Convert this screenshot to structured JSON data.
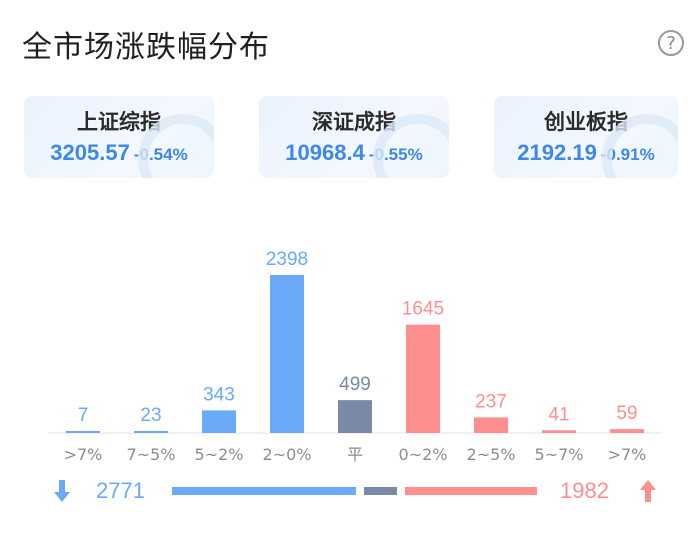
{
  "header": {
    "title": "全市场涨跌幅分布",
    "help_icon": "question-circle-icon",
    "help_glyph": "?"
  },
  "indices": [
    {
      "name": "上证综指",
      "value": "3205.57",
      "change": "-0.54%"
    },
    {
      "name": "深证成指",
      "value": "10968.4",
      "change": "-0.55%"
    },
    {
      "name": "创业板指",
      "value": "2192.19",
      "change": "-0.91%"
    }
  ],
  "colors": {
    "down": "#6aaaf8",
    "flat": "#7a8aa6",
    "up": "#ff8f8f",
    "index_text": "#3d88e8"
  },
  "chart_data": {
    "type": "bar",
    "categories": [
      ">7%",
      "7~5%",
      "5~2%",
      "2~0%",
      "平",
      "0~2%",
      "2~5%",
      "5~7%",
      ">7%"
    ],
    "values": [
      7,
      23,
      343,
      2398,
      499,
      1645,
      237,
      41,
      59
    ],
    "groups": [
      "down",
      "down",
      "down",
      "down",
      "flat",
      "up",
      "up",
      "up",
      "up"
    ],
    "ylim": [
      0,
      2398
    ],
    "grid": false
  },
  "summary": {
    "down_count": "2771",
    "up_count": "1982",
    "down_icon": "arrow-down-icon",
    "up_icon": "arrow-up-icon",
    "ratio": {
      "down": 2771,
      "flat": 499,
      "up": 1982
    }
  }
}
